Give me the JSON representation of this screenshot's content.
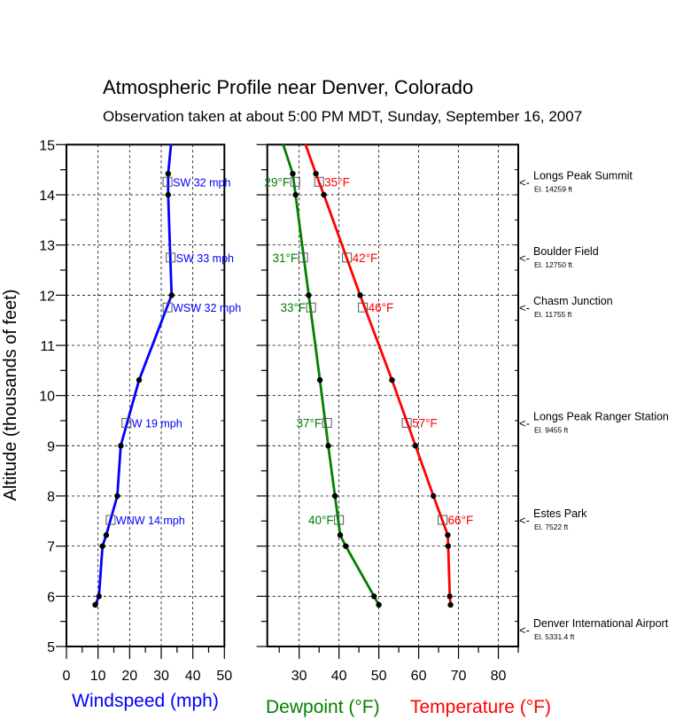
{
  "chart_data": {
    "type": "line",
    "title": "Atmospheric Profile near Denver, Colorado",
    "subtitle": "Observation taken at about 5:00 PM MDT, Sunday, September 16, 2007",
    "ylabel": "Altitude (thousands of feet)",
    "ylim": [
      5,
      15
    ],
    "yticks": [
      "5",
      "6",
      "7",
      "8",
      "9",
      "10",
      "11",
      "12",
      "13",
      "14",
      "15"
    ],
    "grid": true,
    "altitudes": [
      15.0,
      14.42,
      14.0,
      12.0,
      10.31,
      9.0,
      8.0,
      7.22,
      7.0,
      6.0,
      5.83
    ],
    "wind_panel": {
      "xlabel": "Windspeed (mph)",
      "xlim": [
        0,
        50
      ],
      "xticks": [
        "0",
        "10",
        "20",
        "30",
        "40",
        "50"
      ],
      "series": [
        {
          "name": "Windspeed",
          "color": "#0000ff",
          "values": [
            33.1,
            32.2,
            32.2,
            33.3,
            23.0,
            17.2,
            16.1,
            12.6,
            11.4,
            10.3,
            9.1
          ]
        }
      ],
      "labels": [
        {
          "altitude": 14.259,
          "value": 32,
          "text": "SW 32 mph"
        },
        {
          "altitude": 12.75,
          "value": 33,
          "text": "SW 33 mph"
        },
        {
          "altitude": 11.755,
          "value": 32,
          "text": "WSW 32 mph"
        },
        {
          "altitude": 9.455,
          "value": 19,
          "text": "W 19 mph"
        },
        {
          "altitude": 7.522,
          "value": 14,
          "text": "WNW 14 mph"
        }
      ]
    },
    "temp_panel": {
      "xlabel_dewpoint": "Dewpoint (°F)",
      "xlabel_temperature": "Temperature (°F)",
      "xlim": [
        22,
        85
      ],
      "xticks": [
        "30",
        "40",
        "50",
        "60",
        "70",
        "80"
      ],
      "series": [
        {
          "name": "Dewpoint",
          "color": "#008000",
          "values": [
            26.0,
            28.4,
            29.1,
            32.4,
            35.2,
            37.3,
            39.0,
            40.3,
            41.7,
            48.8,
            50.0
          ]
        },
        {
          "name": "Temperature",
          "color": "#ff0000",
          "values": [
            31.6,
            34.2,
            36.2,
            45.3,
            53.3,
            59.2,
            63.7,
            67.3,
            67.4,
            67.8,
            68.0
          ]
        }
      ],
      "dewpoint_labels": [
        {
          "altitude": 14.259,
          "value": 29,
          "text": "29°F"
        },
        {
          "altitude": 12.75,
          "value": 31,
          "text": "31°F"
        },
        {
          "altitude": 11.755,
          "value": 33,
          "text": "33°F"
        },
        {
          "altitude": 9.455,
          "value": 37,
          "text": "37°F"
        },
        {
          "altitude": 7.522,
          "value": 40,
          "text": "40°F"
        }
      ],
      "temperature_labels": [
        {
          "altitude": 14.259,
          "value": 35,
          "text": "35°F"
        },
        {
          "altitude": 12.75,
          "value": 42,
          "text": "42°F"
        },
        {
          "altitude": 11.755,
          "value": 46,
          "text": "46°F"
        },
        {
          "altitude": 9.455,
          "value": 57,
          "text": "57°F"
        },
        {
          "altitude": 7.522,
          "value": 66,
          "text": "66°F"
        }
      ]
    },
    "stations": [
      {
        "altitude": 14.259,
        "name": "Longs Peak Summit",
        "elevation": "El. 14259 ft"
      },
      {
        "altitude": 12.75,
        "name": "Boulder Field",
        "elevation": "El. 12750 ft"
      },
      {
        "altitude": 11.755,
        "name": "Chasm Junction",
        "elevation": "El. 11755 ft"
      },
      {
        "altitude": 9.455,
        "name": "Longs Peak Ranger Station",
        "elevation": "El. 9455 ft"
      },
      {
        "altitude": 7.522,
        "name": "Estes Park",
        "elevation": "El. 7522 ft"
      },
      {
        "altitude": 5.3314,
        "name": "Denver International Airport",
        "elevation": "El. 5331.4 ft"
      }
    ],
    "station_arrow": "<-"
  }
}
